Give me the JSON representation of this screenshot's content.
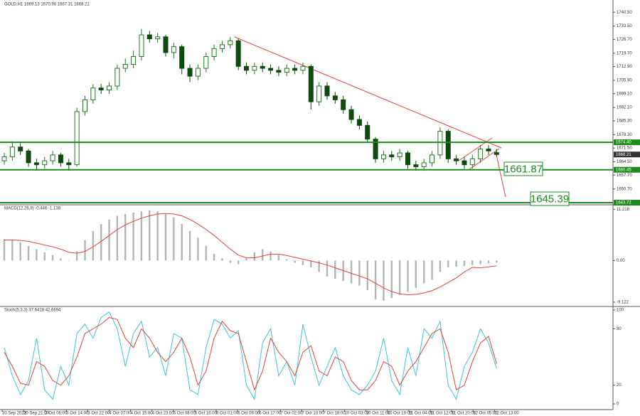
{
  "chart_data": [
    {
      "type": "candlestick",
      "title": "GOLD,H1  1669.13 1670.98 1667.31 1668.21",
      "open": [
        1665,
        1667,
        1672,
        1670,
        1664,
        1663,
        1665,
        1668,
        1664,
        1663,
        1690,
        1696,
        1702,
        1701,
        1703,
        1712,
        1714,
        1718,
        1729,
        1727,
        1728,
        1720,
        1723,
        1712,
        1708,
        1712,
        1718,
        1722,
        1724,
        1726,
        1713,
        1711,
        1713,
        1712,
        1711,
        1710,
        1712,
        1711,
        1713,
        1695,
        1703,
        1698,
        1696,
        1691,
        1686,
        1683,
        1676,
        1666,
        1668,
        1667,
        1669,
        1663,
        1662,
        1664,
        1668,
        1680,
        1666,
        1665,
        1663,
        1666,
        1671,
        1669.13
      ],
      "high": [
        1669,
        1675,
        1674,
        1671,
        1666,
        1667,
        1670,
        1669,
        1666,
        1692,
        1698,
        1704,
        1704,
        1705,
        1714,
        1717,
        1721,
        1732,
        1731,
        1730,
        1729,
        1725,
        1724,
        1714,
        1714,
        1720,
        1724,
        1726,
        1728,
        1727,
        1715,
        1715,
        1715,
        1714,
        1713,
        1714,
        1714,
        1715,
        1714,
        1705,
        1705,
        1700,
        1698,
        1693,
        1688,
        1685,
        1677,
        1670,
        1670,
        1671,
        1670,
        1665,
        1666,
        1670,
        1682,
        1681,
        1668,
        1667,
        1668,
        1673,
        1673,
        1670.98
      ],
      "low": [
        1663,
        1665,
        1668,
        1662,
        1660,
        1661,
        1663,
        1662,
        1660,
        1662,
        1688,
        1694,
        1699,
        1699,
        1701,
        1710,
        1712,
        1716,
        1725,
        1725,
        1718,
        1717,
        1709,
        1705,
        1706,
        1710,
        1716,
        1720,
        1722,
        1711,
        1709,
        1709,
        1710,
        1709,
        1708,
        1708,
        1709,
        1709,
        1691,
        1693,
        1696,
        1694,
        1689,
        1684,
        1681,
        1674,
        1664,
        1664,
        1665,
        1665,
        1661,
        1660,
        1660,
        1662,
        1666,
        1664,
        1663,
        1661,
        1661,
        1664,
        1668,
        1667.31
      ],
      "close": [
        1667,
        1672,
        1670,
        1664,
        1663,
        1665,
        1668,
        1664,
        1663,
        1690,
        1696,
        1702,
        1701,
        1703,
        1712,
        1714,
        1718,
        1729,
        1727,
        1728,
        1720,
        1723,
        1712,
        1708,
        1712,
        1718,
        1722,
        1724,
        1726,
        1713,
        1711,
        1713,
        1712,
        1711,
        1710,
        1712,
        1711,
        1713,
        1695,
        1703,
        1698,
        1696,
        1691,
        1686,
        1683,
        1676,
        1666,
        1668,
        1667,
        1669,
        1663,
        1662,
        1664,
        1668,
        1680,
        1666,
        1665,
        1663,
        1666,
        1671,
        1670,
        1668.21
      ],
      "up_color": "#1f7a1f",
      "down_color": "#0f4a0f",
      "ylim": [
        1643,
        1746
      ],
      "yticks": [
        {
          "value": 1740.5,
          "label": "1740.50"
        },
        {
          "value": 1733.5,
          "label": "1733.50"
        },
        {
          "value": 1726.7,
          "label": "1726.70"
        },
        {
          "value": 1719.7,
          "label": "1719.70"
        },
        {
          "value": 1712.9,
          "label": "1712.90"
        },
        {
          "value": 1705.9,
          "label": "1705.90"
        },
        {
          "value": 1699.1,
          "label": "1699.10"
        },
        {
          "value": 1692.1,
          "label": "1692.10"
        },
        {
          "value": 1685.3,
          "label": "1685.30"
        },
        {
          "value": 1678.3,
          "label": "1678.30"
        },
        {
          "value": 1671.5,
          "label": "1671.50"
        },
        {
          "value": 1664.5,
          "label": "1664.50"
        },
        {
          "value": 1657.7,
          "label": "1657.70"
        },
        {
          "value": 1650.7,
          "label": "1650.70"
        }
      ],
      "levels": [
        {
          "value": 1674.4,
          "label": "1674.40"
        },
        {
          "value": 1660.45,
          "label": "1660.45"
        },
        {
          "value": 1643.72,
          "label": "1643.72"
        }
      ],
      "level_color": "#1d8b1d",
      "annotations": [
        "1661.87",
        "1645.39"
      ],
      "time_labels": [
        "30 Sep 2022",
        "30 Sep 21:00",
        "3 Oct 06:00",
        "3 Oct 14:00",
        "3 Oct 22:00",
        "4 Oct 07:00",
        "4 Oct 15:00",
        "4 Oct 23:00",
        "5 Oct 08:00",
        "5 Oct 16:00",
        "6 Oct 01:00",
        "6 Oct 09:00",
        "6 Oct 17:00",
        "7 Oct 02:00",
        "7 Oct 10:00",
        "7 Oct 18:00",
        "10 Oct 03:00",
        "10 Oct 11:00",
        "10 Oct 19:00",
        "11 Oct 04:00",
        "11 Oct 12:00",
        "11 Oct 20:00",
        "12 Oct 05:00",
        "12 Oct 13:00"
      ]
    },
    {
      "type": "macd",
      "title": "MACD(12,26,9) -0.446 -1.138",
      "series": [
        {
          "name": "MACD",
          "color": "#b4b4b4",
          "values": [
            4.7,
            4.5,
            4,
            3.2,
            2.5,
            1.8,
            1.2,
            0.5,
            0,
            2,
            4.5,
            6.5,
            8,
            9,
            9.8,
            10.2,
            10.5,
            10.8,
            11,
            10.8,
            10.2,
            9.5,
            8,
            6.5,
            5,
            3.2,
            1.5,
            0.5,
            -0.5,
            -0.8,
            0.5,
            1.8,
            2.5,
            2,
            1.2,
            0.3,
            -0.5,
            -1,
            -1.5,
            -2.5,
            -3.5,
            -4,
            -4.5,
            -5,
            -5.5,
            -6.5,
            -8.5,
            -8.8,
            -8.2,
            -7.5,
            -6.8,
            -6,
            -5,
            -4.2,
            -2.5,
            -1.5,
            -1.3,
            -1.2,
            -1,
            -0.8,
            -0.6,
            -0.446
          ]
        },
        {
          "name": "Signal",
          "color": "#e8413c",
          "values": [
            4.5,
            4.5,
            4.4,
            4.2,
            3.8,
            3.4,
            3,
            2.5,
            1.8,
            1.6,
            2,
            3,
            4.2,
            5.5,
            6.8,
            7.8,
            8.6,
            9.3,
            9.8,
            10.2,
            10.3,
            10.2,
            9.8,
            9,
            8,
            6.8,
            5.5,
            4,
            2.5,
            1.2,
            0.6,
            0.6,
            1,
            1.4,
            1.4,
            1.1,
            0.7,
            0.3,
            -0.1,
            -0.5,
            -1,
            -1.6,
            -2.2,
            -2.8,
            -3.4,
            -4,
            -5,
            -6,
            -6.8,
            -7.3,
            -7.5,
            -7.4,
            -7.1,
            -6.6,
            -5.8,
            -4.8,
            -3.8,
            -2.5,
            -1.5,
            -1.6,
            -1.4,
            -1.138
          ]
        }
      ],
      "ylim": [
        -9.6,
        11.9
      ],
      "yticks": [
        11.218,
        {
          "value": 0,
          "label": "0.00"
        },
        -9.122
      ]
    },
    {
      "type": "stochastic",
      "title": "Stoch(5,3,3) 37.6418 42.6694",
      "series": [
        {
          "name": "Main",
          "color": "#3cc8d8",
          "values": [
            60,
            30,
            10,
            25,
            70,
            15,
            5,
            40,
            20,
            75,
            85,
            70,
            92,
            98,
            80,
            40,
            75,
            88,
            50,
            60,
            30,
            75,
            70,
            15,
            10,
            60,
            90,
            85,
            70,
            78,
            20,
            5,
            65,
            80,
            30,
            45,
            20,
            85,
            50,
            20,
            40,
            60,
            30,
            15,
            10,
            20,
            35,
            70,
            25,
            10,
            60,
            30,
            80,
            70,
            88,
            20,
            5,
            40,
            55,
            80,
            65,
            37.64
          ]
        },
        {
          "name": "Signal",
          "color": "#e8413c",
          "values": [
            55,
            40,
            22,
            20,
            45,
            40,
            25,
            20,
            30,
            50,
            75,
            80,
            85,
            92,
            90,
            70,
            60,
            80,
            70,
            55,
            45,
            55,
            70,
            50,
            20,
            35,
            70,
            88,
            78,
            75,
            45,
            15,
            35,
            70,
            55,
            45,
            30,
            55,
            62,
            35,
            30,
            50,
            45,
            25,
            15,
            15,
            25,
            45,
            40,
            20,
            35,
            45,
            60,
            75,
            80,
            55,
            15,
            20,
            45,
            65,
            72,
            42.67
          ]
        }
      ],
      "ylim": [
        -3,
        103
      ],
      "yticks": [
        100,
        80,
        20,
        0
      ]
    }
  ]
}
